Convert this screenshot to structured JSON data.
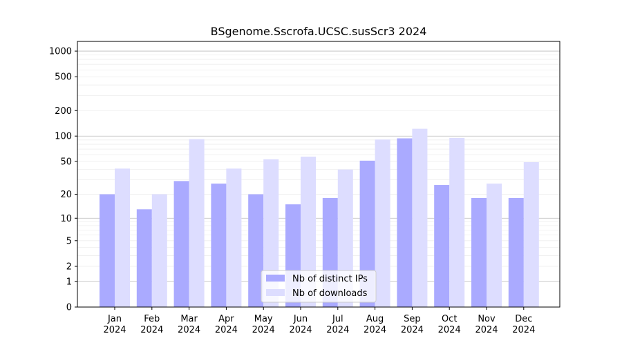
{
  "chart_data": {
    "type": "bar",
    "title": "BSgenome.Sscrofa.UCSC.susScr3 2024",
    "xlabel": "",
    "ylabel": "",
    "yscale": "log1p",
    "ylim": [
      0,
      1300
    ],
    "yticks": [
      0,
      1,
      2,
      5,
      10,
      20,
      50,
      100,
      200,
      500,
      1000
    ],
    "ytick_labels": [
      "0",
      "1",
      "2",
      "5",
      "10",
      "20",
      "50",
      "100",
      "200",
      "500",
      "1000"
    ],
    "categories": [
      "Jan",
      "Feb",
      "Mar",
      "Apr",
      "May",
      "Jun",
      "Jul",
      "Aug",
      "Sep",
      "Oct",
      "Nov",
      "Dec"
    ],
    "category_year": "2024",
    "series": [
      {
        "name": "Nb of distinct IPs",
        "color": "#aaaaff",
        "values": [
          20,
          13,
          29,
          27,
          20,
          15,
          18,
          51,
          94,
          26,
          18,
          18
        ]
      },
      {
        "name": "Nb of downloads",
        "color": "#ddddff",
        "values": [
          41,
          20,
          92,
          41,
          53,
          57,
          40,
          91,
          122,
          95,
          27,
          49
        ]
      }
    ],
    "grid": true,
    "legend_position": "lower-center"
  }
}
